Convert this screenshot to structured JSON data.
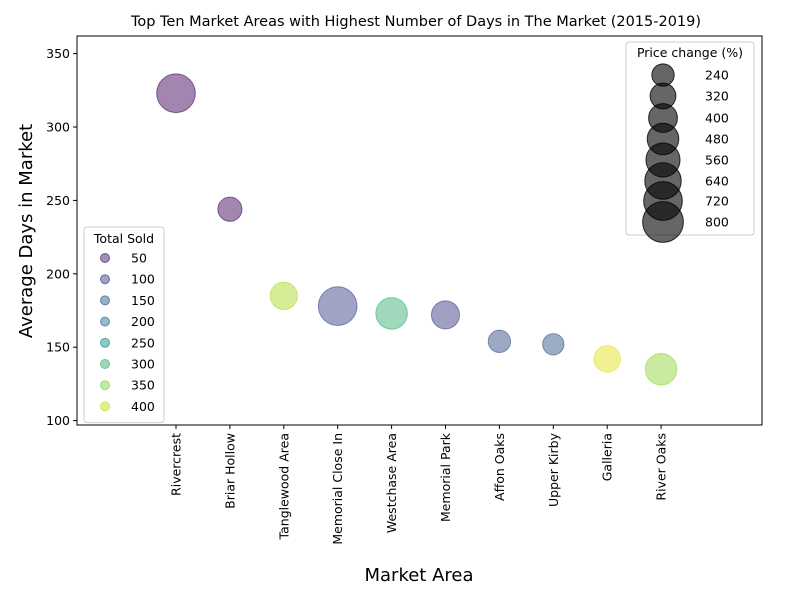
{
  "chart_data": {
    "type": "scatter",
    "title": "Top Ten Market Areas with Highest Number of Days in The Market (2015-2019)",
    "xlabel": "Market Area",
    "ylabel": "Average Days in Market",
    "ylim": [
      97,
      362
    ],
    "yticks": [
      100,
      150,
      200,
      250,
      300,
      350
    ],
    "categories": [
      "Rivercrest",
      "Briar Hollow",
      "Tanglewood Area",
      "Memorial Close In",
      "Westchase Area",
      "Memorial Park",
      "Affon Oaks",
      "Upper Kirby",
      "Galleria",
      "River Oaks"
    ],
    "values": [
      323,
      244,
      185,
      178,
      173,
      172,
      154,
      152,
      142,
      135
    ],
    "total_sold": [
      20,
      20,
      380,
      110,
      300,
      100,
      130,
      140,
      420,
      360
    ],
    "price_change": [
      720,
      280,
      360,
      720,
      480,
      380,
      240,
      220,
      340,
      480
    ],
    "color_scale": "viridis",
    "color_range": [
      0,
      440
    ],
    "alpha": 0.5,
    "legend_color": {
      "title": "Total Sold",
      "placement": "lower-left",
      "entries": [
        "50",
        "100",
        "150",
        "200",
        "250",
        "300",
        "350",
        "400"
      ],
      "levels": [
        50,
        100,
        150,
        200,
        250,
        300,
        350,
        400
      ]
    },
    "legend_size": {
      "title": "Price change (%)",
      "placement": "upper-right",
      "entries": [
        "240",
        "320",
        "400",
        "480",
        "560",
        "640",
        "720",
        "800"
      ],
      "levels": [
        240,
        320,
        400,
        480,
        560,
        640,
        720,
        800
      ],
      "color": "#000000"
    },
    "grid": false
  }
}
